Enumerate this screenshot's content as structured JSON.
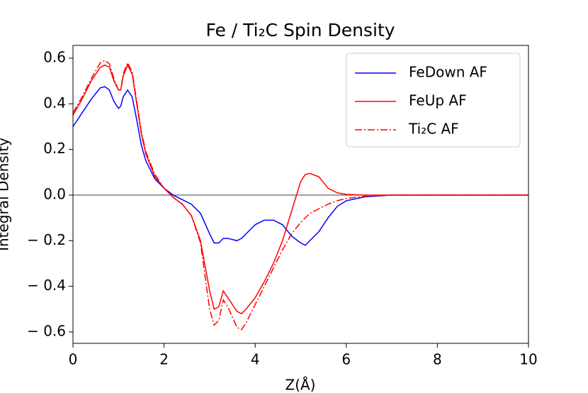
{
  "chart_data": {
    "type": "line",
    "title": "Fe / Ti₂C Spin Density",
    "xlabel": "Z(Å)",
    "ylabel": "Integral Density",
    "xlim": [
      0,
      10
    ],
    "ylim": [
      -0.65,
      0.656
    ],
    "xticks": [
      0,
      2,
      4,
      6,
      8,
      10
    ],
    "yticks": [
      {
        "value": -0.6,
        "label": "− 0.6"
      },
      {
        "value": -0.4,
        "label": "− 0.4"
      },
      {
        "value": -0.2,
        "label": "− 0.2"
      },
      {
        "value": 0,
        "label": "0.0"
      },
      0.2,
      0.4,
      0.6
    ],
    "hline": 0,
    "legend": "upper right",
    "x": [
      0,
      0.2,
      0.4,
      0.6,
      0.7,
      0.8,
      0.9,
      1.0,
      1.05,
      1.1,
      1.2,
      1.3,
      1.4,
      1.5,
      1.6,
      1.8,
      2.0,
      2.2,
      2.4,
      2.6,
      2.8,
      3.0,
      3.1,
      3.2,
      3.3,
      3.4,
      3.6,
      3.7,
      3.8,
      4.0,
      4.2,
      4.4,
      4.6,
      4.8,
      5.0,
      5.1,
      5.2,
      5.4,
      5.6,
      5.8,
      6.0,
      6.4,
      7.0,
      8.0,
      10.0
    ],
    "series": [
      {
        "name": "FeDown AF",
        "color": "#0000ff",
        "linestyle": "solid",
        "values": [
          0.3,
          0.36,
          0.42,
          0.47,
          0.475,
          0.46,
          0.41,
          0.38,
          0.39,
          0.43,
          0.46,
          0.43,
          0.33,
          0.22,
          0.15,
          0.07,
          0.03,
          0.0,
          -0.02,
          -0.04,
          -0.08,
          -0.17,
          -0.21,
          -0.21,
          -0.19,
          -0.19,
          -0.2,
          -0.19,
          -0.17,
          -0.13,
          -0.11,
          -0.11,
          -0.13,
          -0.18,
          -0.21,
          -0.22,
          -0.2,
          -0.16,
          -0.1,
          -0.05,
          -0.025,
          -0.008,
          0,
          0,
          0
        ]
      },
      {
        "name": "FeUp AF",
        "color": "#ff0000",
        "linestyle": "solid",
        "values": [
          0.35,
          0.42,
          0.5,
          0.56,
          0.57,
          0.56,
          0.5,
          0.46,
          0.46,
          0.52,
          0.57,
          0.53,
          0.4,
          0.27,
          0.18,
          0.08,
          0.03,
          -0.01,
          -0.04,
          -0.09,
          -0.2,
          -0.42,
          -0.5,
          -0.49,
          -0.42,
          -0.45,
          -0.51,
          -0.52,
          -0.5,
          -0.45,
          -0.38,
          -0.3,
          -0.2,
          -0.07,
          0.06,
          0.09,
          0.095,
          0.08,
          0.03,
          0.01,
          0.003,
          0,
          0,
          0,
          0
        ]
      },
      {
        "name": "Ti₂C AF",
        "color": "#ff0000",
        "linestyle": "dashdot",
        "values": [
          0.36,
          0.43,
          0.51,
          0.58,
          0.59,
          0.575,
          0.51,
          0.46,
          0.46,
          0.53,
          0.58,
          0.54,
          0.41,
          0.28,
          0.19,
          0.09,
          0.03,
          -0.01,
          -0.04,
          -0.09,
          -0.21,
          -0.5,
          -0.57,
          -0.55,
          -0.46,
          -0.49,
          -0.58,
          -0.59,
          -0.56,
          -0.48,
          -0.4,
          -0.32,
          -0.24,
          -0.17,
          -0.12,
          -0.1,
          -0.08,
          -0.06,
          -0.04,
          -0.025,
          -0.015,
          -0.005,
          0,
          0,
          0
        ]
      }
    ]
  }
}
